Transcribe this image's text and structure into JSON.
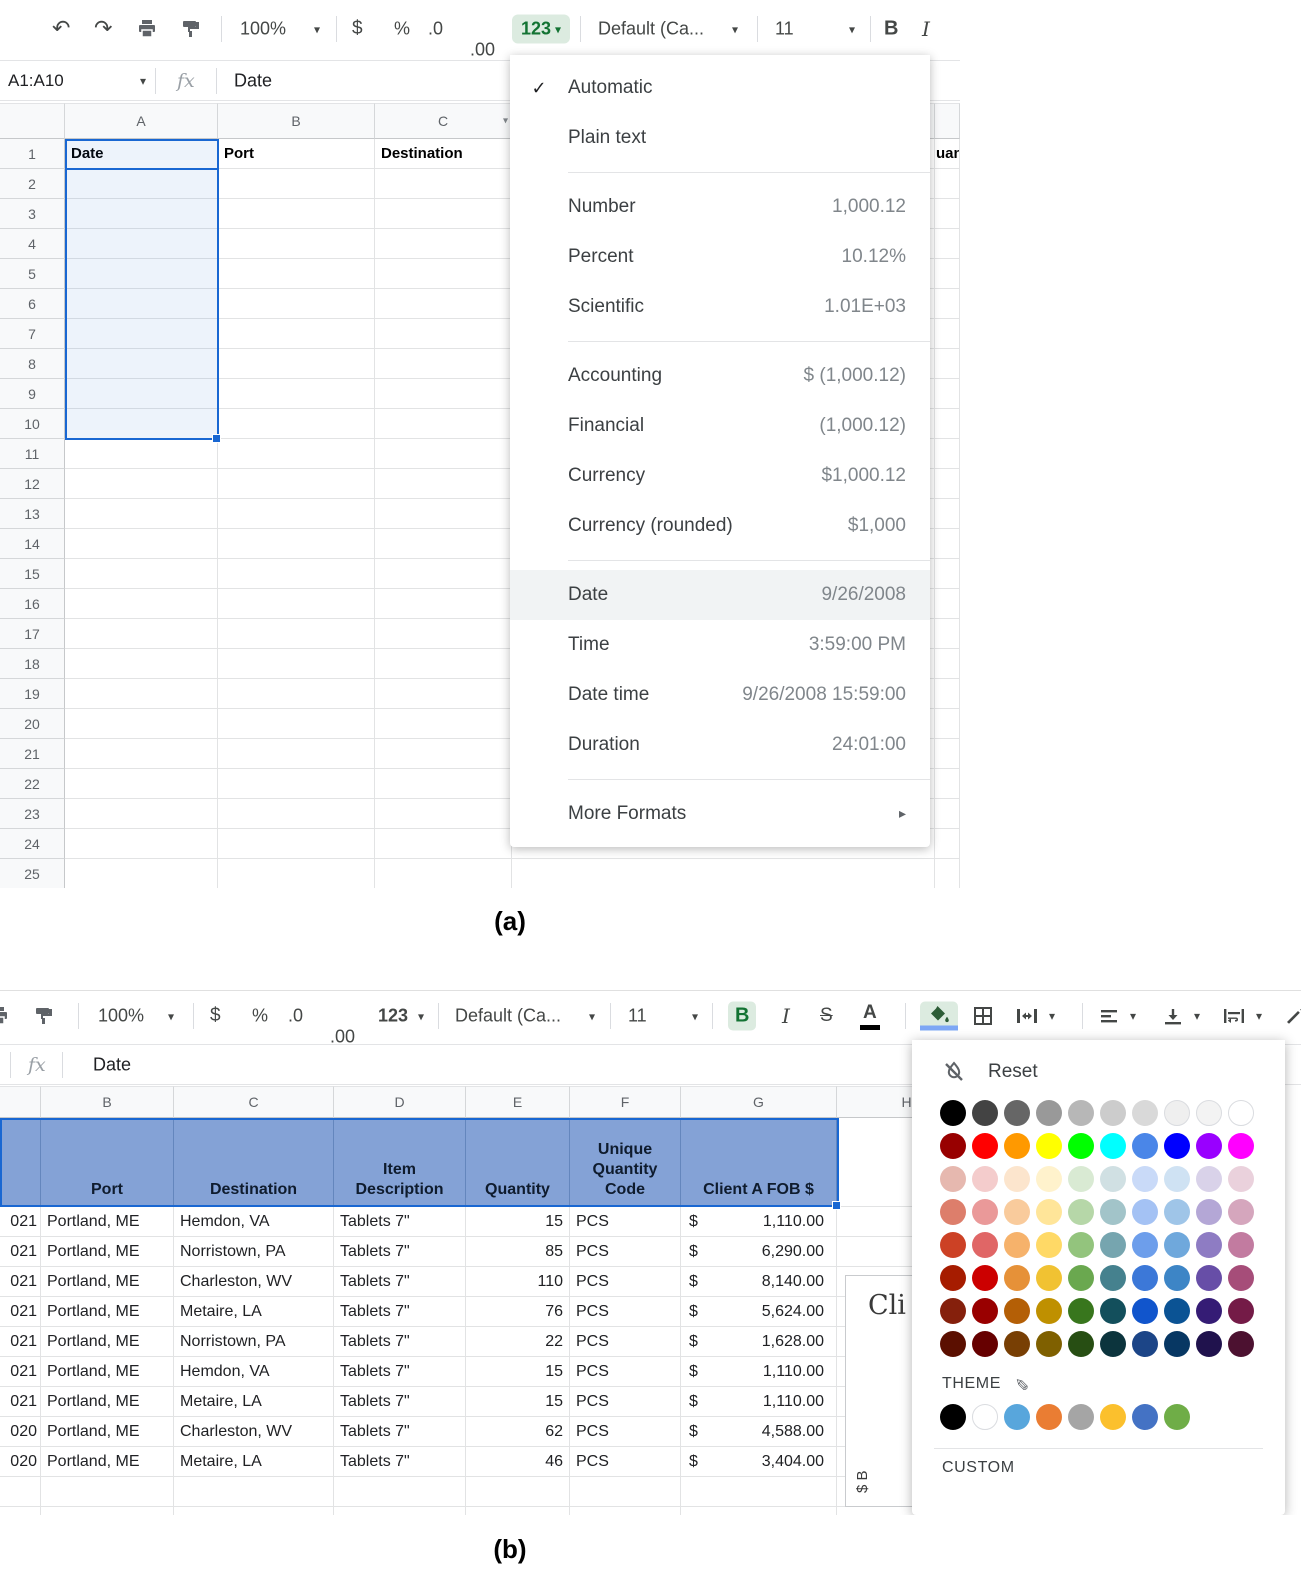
{
  "labels": {
    "a": "(a)",
    "b": "(b)"
  },
  "colors": {
    "accent_green": "#137333",
    "selection_blue": "#1967d2",
    "table_header_fill": "#84a2d6",
    "fill_indicator_blue": "#7da7f5",
    "text_color_indicator": "#000000"
  },
  "shot_a": {
    "toolbar": {
      "zoom": "100%",
      "currency": "$",
      "percent": "%",
      "dec_decrease": ".0",
      "dec_increase": ".00",
      "format": "123",
      "font": "Default (Ca...",
      "size": "11",
      "bold": "B",
      "italic": "I"
    },
    "formula_bar": {
      "name_box": "A1:A10",
      "fx": "fx",
      "value": "Date"
    },
    "grid": {
      "columns": [
        "A",
        "B",
        "C"
      ],
      "row_numbers": [
        1,
        2,
        3,
        4,
        5,
        6,
        7,
        8,
        9,
        10,
        11,
        12,
        13,
        14,
        15,
        16,
        17,
        18,
        19,
        20,
        21,
        22,
        23,
        24,
        25
      ],
      "first_row": [
        "Date",
        "Port",
        "Destination"
      ],
      "clipped_header": "uan"
    },
    "menu": {
      "items": [
        {
          "label": "Automatic",
          "checked": true
        },
        {
          "label": "Plain text"
        },
        {
          "type": "divider"
        },
        {
          "label": "Number",
          "value": "1,000.12"
        },
        {
          "label": "Percent",
          "value": "10.12%"
        },
        {
          "label": "Scientific",
          "value": "1.01E+03"
        },
        {
          "type": "divider"
        },
        {
          "label": "Accounting",
          "value": "$ (1,000.12)"
        },
        {
          "label": "Financial",
          "value": "(1,000.12)"
        },
        {
          "label": "Currency",
          "value": "$1,000.12"
        },
        {
          "label": "Currency (rounded)",
          "value": "$1,000"
        },
        {
          "type": "divider"
        },
        {
          "label": "Date",
          "value": "9/26/2008",
          "highlighted": true
        },
        {
          "label": "Time",
          "value": "3:59:00 PM"
        },
        {
          "label": "Date time",
          "value": "9/26/2008 15:59:00"
        },
        {
          "label": "Duration",
          "value": "24:01:00"
        },
        {
          "type": "divider"
        },
        {
          "label": "More Formats",
          "submenu": true
        }
      ]
    }
  },
  "shot_b": {
    "toolbar": {
      "zoom": "100%",
      "currency": "$",
      "percent": "%",
      "dec_decrease": ".0",
      "dec_increase": ".00",
      "format": "123",
      "font": "Default (Ca...",
      "size": "11",
      "bold": "B",
      "italic": "I",
      "strike": "S",
      "text_color": "A"
    },
    "formula_bar": {
      "fx": "fx",
      "value": "Date"
    },
    "grid": {
      "column_letters": [
        "B",
        "C",
        "D",
        "E",
        "F",
        "G",
        "H"
      ],
      "headers": [
        "Port",
        "Destination",
        "Item Description",
        "Quantity",
        "Unique Quantity Code",
        "Client A FOB $"
      ],
      "rows": [
        [
          "021",
          "Portland, ME",
          "Hemdon, VA",
          "Tablets 7\"",
          "15",
          "PCS",
          "$",
          "1,110.00"
        ],
        [
          "021",
          "Portland, ME",
          "Norristown, PA",
          "Tablets 7\"",
          "85",
          "PCS",
          "$",
          "6,290.00"
        ],
        [
          "021",
          "Portland, ME",
          "Charleston, WV",
          "Tablets 7\"",
          "110",
          "PCS",
          "$",
          "8,140.00"
        ],
        [
          "021",
          "Portland, ME",
          "Metaire, LA",
          "Tablets 7\"",
          "76",
          "PCS",
          "$",
          "5,624.00"
        ],
        [
          "021",
          "Portland, ME",
          "Norristown, PA",
          "Tablets 7\"",
          "22",
          "PCS",
          "$",
          "1,628.00"
        ],
        [
          "021",
          "Portland, ME",
          "Hemdon, VA",
          "Tablets 7\"",
          "15",
          "PCS",
          "$",
          "1,110.00"
        ],
        [
          "021",
          "Portland, ME",
          "Metaire, LA",
          "Tablets 7\"",
          "15",
          "PCS",
          "$",
          "1,110.00"
        ],
        [
          "020",
          "Portland, ME",
          "Charleston, WV",
          "Tablets 7\"",
          "62",
          "PCS",
          "$",
          "4,588.00"
        ],
        [
          "020",
          "Portland, ME",
          "Metaire, LA",
          "Tablets 7\"",
          "46",
          "PCS",
          "$",
          "3,404.00"
        ]
      ]
    },
    "chart_fragment": {
      "title": "Cli",
      "ylabel": "$ B"
    },
    "color_picker": {
      "reset": "Reset",
      "theme": "THEME",
      "custom": "CUSTOM",
      "palette": [
        [
          "#000000",
          "#434343",
          "#666666",
          "#999999",
          "#b7b7b7",
          "#cccccc",
          "#d9d9d9",
          "#efefef",
          "#f3f3f3",
          "#ffffff"
        ],
        [
          "#980000",
          "#ff0000",
          "#ff9900",
          "#ffff00",
          "#00ff00",
          "#00ffff",
          "#4a86e8",
          "#0000ff",
          "#9900ff",
          "#ff00ff"
        ],
        [
          "#e6b8af",
          "#f4cccc",
          "#fce5cd",
          "#fff2cc",
          "#d9ead3",
          "#d0e0e3",
          "#c9daf8",
          "#cfe2f3",
          "#d9d2e9",
          "#ead1dc"
        ],
        [
          "#dd7e6b",
          "#ea9999",
          "#f9cb9c",
          "#ffe599",
          "#b6d7a8",
          "#a2c4c9",
          "#a4c2f4",
          "#9fc5e8",
          "#b4a7d6",
          "#d5a6bd"
        ],
        [
          "#cc4125",
          "#e06666",
          "#f6b26b",
          "#ffd966",
          "#93c47d",
          "#76a5af",
          "#6d9eeb",
          "#6fa8dc",
          "#8e7cc3",
          "#c27ba0"
        ],
        [
          "#a61c00",
          "#cc0000",
          "#e69138",
          "#f1c232",
          "#6aa84f",
          "#45818e",
          "#3c78d8",
          "#3d85c6",
          "#674ea7",
          "#a64d79"
        ],
        [
          "#85200c",
          "#990000",
          "#b45f06",
          "#bf9000",
          "#38761d",
          "#134f5c",
          "#1155cc",
          "#0b5394",
          "#351c75",
          "#741b47"
        ],
        [
          "#5b0f00",
          "#660000",
          "#783f04",
          "#7f6000",
          "#274e13",
          "#0c343d",
          "#1c4587",
          "#073763",
          "#20124d",
          "#4c1130"
        ]
      ],
      "theme_colors": [
        "#000000",
        "#ffffff",
        "#58a6dc",
        "#ea7d33",
        "#a5a5a5",
        "#fbc02d",
        "#4472c4",
        "#6fad47"
      ]
    }
  }
}
